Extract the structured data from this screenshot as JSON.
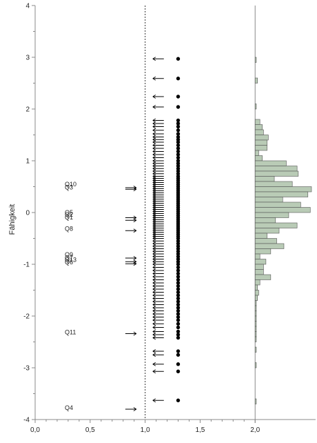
{
  "chart_data": {
    "type": "item-person-map",
    "ylabel": "Fähigkeit",
    "ylim": [
      -4,
      4
    ],
    "xlim": [
      0,
      2.55
    ],
    "y_ticks": [
      "4",
      "3",
      "2",
      "1",
      "0",
      "-1",
      "-2",
      "-3",
      "-4"
    ],
    "x_ticks": [
      "0,0",
      "0,5",
      "1,0",
      "1,5",
      "2,0"
    ],
    "reference_line_x": 1.0,
    "histogram_baseline_x": 2.0,
    "items": [
      {
        "label": "Q10",
        "y": 0.55
      },
      {
        "label": "Q3",
        "y": 0.49
      },
      {
        "label": "Q5",
        "y": 0.0
      },
      {
        "label": "Q2",
        "y": -0.04
      },
      {
        "label": "Q1",
        "y": -0.09
      },
      {
        "label": "Q8",
        "y": -0.31
      },
      {
        "label": "Q9",
        "y": -0.81
      },
      {
        "label": "Q7",
        "y": -0.87
      },
      {
        "label": "Q13",
        "y": -0.91
      },
      {
        "label": "Q6",
        "y": -0.96
      },
      {
        "label": "Q11",
        "y": -2.31
      },
      {
        "label": "Q4",
        "y": -3.77
      }
    ],
    "item_arrows": [
      {
        "x": 0.92,
        "y": 0.45
      },
      {
        "x": 0.92,
        "y": 0.48
      },
      {
        "x": 0.92,
        "y": -0.1
      },
      {
        "x": 0.92,
        "y": -0.15
      },
      {
        "x": 0.92,
        "y": -0.35
      },
      {
        "x": 0.92,
        "y": -0.88
      },
      {
        "x": 0.92,
        "y": -0.95
      },
      {
        "x": 0.92,
        "y": -0.99
      },
      {
        "x": 0.92,
        "y": -2.34
      },
      {
        "x": 0.92,
        "y": -3.8
      }
    ],
    "person_dot_x": 1.3,
    "person_arrow_x": 1.12,
    "person_abilities": [
      2.97,
      2.59,
      2.24,
      2.04,
      1.78,
      1.72,
      1.66,
      1.59,
      1.52,
      1.46,
      1.41,
      1.36,
      1.3,
      1.24,
      1.18,
      1.12,
      1.06,
      1.0,
      0.95,
      0.9,
      0.85,
      0.8,
      0.75,
      0.7,
      0.66,
      0.62,
      0.58,
      0.54,
      0.5,
      0.46,
      0.42,
      0.38,
      0.34,
      0.3,
      0.26,
      0.22,
      0.18,
      0.14,
      0.1,
      0.06,
      0.02,
      -0.02,
      -0.06,
      -0.1,
      -0.14,
      -0.18,
      -0.22,
      -0.26,
      -0.3,
      -0.34,
      -0.38,
      -0.42,
      -0.46,
      -0.5,
      -0.55,
      -0.6,
      -0.65,
      -0.7,
      -0.75,
      -0.8,
      -0.85,
      -0.9,
      -0.95,
      -1.0,
      -1.06,
      -1.12,
      -1.18,
      -1.24,
      -1.3,
      -1.36,
      -1.42,
      -1.48,
      -1.54,
      -1.6,
      -1.66,
      -1.72,
      -1.78,
      -1.84,
      -1.9,
      -1.96,
      -2.02,
      -2.08,
      -2.15,
      -2.22,
      -2.3,
      -2.36,
      -2.42,
      -2.68,
      -2.75,
      -2.93,
      -3.07,
      -3.63
    ],
    "histogram": {
      "bin_width": 0.1,
      "bins": [
        {
          "y": 2.95,
          "count": 1
        },
        {
          "y": 2.55,
          "count": 2
        },
        {
          "y": 2.05,
          "count": 1
        },
        {
          "y": 1.75,
          "count": 4
        },
        {
          "y": 1.65,
          "count": 6
        },
        {
          "y": 1.55,
          "count": 7
        },
        {
          "y": 1.45,
          "count": 11
        },
        {
          "y": 1.35,
          "count": 10
        },
        {
          "y": 1.25,
          "count": 10
        },
        {
          "y": 1.15,
          "count": 3
        },
        {
          "y": 1.05,
          "count": 6
        },
        {
          "y": 0.95,
          "count": 26
        },
        {
          "y": 0.85,
          "count": 35
        },
        {
          "y": 0.75,
          "count": 36
        },
        {
          "y": 0.65,
          "count": 16
        },
        {
          "y": 0.55,
          "count": 31
        },
        {
          "y": 0.45,
          "count": 47
        },
        {
          "y": 0.35,
          "count": 44
        },
        {
          "y": 0.25,
          "count": 23
        },
        {
          "y": 0.15,
          "count": 38
        },
        {
          "y": 0.05,
          "count": 46
        },
        {
          "y": -0.05,
          "count": 28
        },
        {
          "y": -0.15,
          "count": 17
        },
        {
          "y": -0.25,
          "count": 35
        },
        {
          "y": -0.35,
          "count": 20
        },
        {
          "y": -0.45,
          "count": 10
        },
        {
          "y": -0.55,
          "count": 18
        },
        {
          "y": -0.65,
          "count": 24
        },
        {
          "y": -0.75,
          "count": 13
        },
        {
          "y": -0.85,
          "count": 4
        },
        {
          "y": -0.95,
          "count": 9
        },
        {
          "y": -1.05,
          "count": 7
        },
        {
          "y": -1.15,
          "count": 7
        },
        {
          "y": -1.25,
          "count": 13
        },
        {
          "y": -1.35,
          "count": 4
        },
        {
          "y": -1.45,
          "count": 2
        },
        {
          "y": -1.55,
          "count": 3
        },
        {
          "y": -1.65,
          "count": 2
        },
        {
          "y": -1.75,
          "count": 1
        },
        {
          "y": -1.85,
          "count": 1
        },
        {
          "y": -1.95,
          "count": 1
        },
        {
          "y": -2.05,
          "count": 1
        },
        {
          "y": -2.15,
          "count": 1
        },
        {
          "y": -2.25,
          "count": 1
        },
        {
          "y": -2.35,
          "count": 1
        },
        {
          "y": -2.45,
          "count": 1
        },
        {
          "y": -2.65,
          "count": 1
        },
        {
          "y": -2.95,
          "count": 1
        },
        {
          "y": -3.65,
          "count": 1
        }
      ]
    },
    "colors": {
      "histogram_fill": "#b9cbb6",
      "histogram_stroke": "#555555",
      "axis": "#888888",
      "marks": "#000000"
    }
  }
}
